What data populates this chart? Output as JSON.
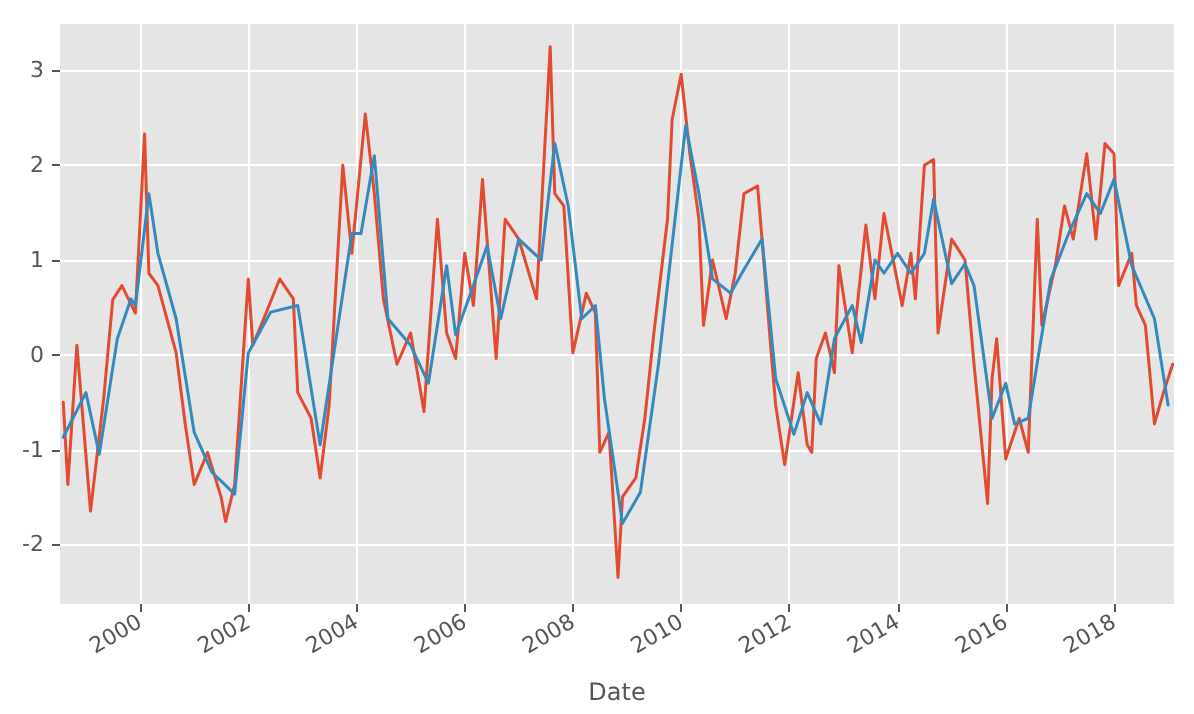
{
  "chart_data": {
    "type": "line",
    "xlabel": "Date",
    "xlim": [
      "1998-07-10",
      "2019-02-10"
    ],
    "xticks": [
      "2000",
      "2002",
      "2004",
      "2006",
      "2008",
      "2010",
      "2012",
      "2014",
      "2016",
      "2018"
    ],
    "ylim": [
      -2.63,
      3.49
    ],
    "yticks": [
      -2,
      -1,
      0,
      1,
      2,
      3
    ],
    "grid": true,
    "marker": "none",
    "line_style": "solid",
    "series": [
      {
        "color": "#e24a33",
        "x": [
          "1998-08",
          "1998-09",
          "1998-11",
          "1999-02",
          "1999-05",
          "1999-07",
          "1999-09",
          "1999-12",
          "2000-02",
          "2000-03",
          "2000-05",
          "2000-09",
          "2000-11",
          "2001-01",
          "2001-04",
          "2001-07",
          "2001-08",
          "2001-10",
          "2002-01",
          "2002-02",
          "2002-05",
          "2002-08",
          "2002-11",
          "2002-12",
          "2003-03",
          "2003-05",
          "2003-07",
          "2003-10",
          "2003-12",
          "2004-03",
          "2004-05",
          "2004-07",
          "2004-10",
          "2005-01",
          "2005-04",
          "2005-07",
          "2005-09",
          "2005-11",
          "2006-01",
          "2006-03",
          "2006-05",
          "2006-08",
          "2006-10",
          "2007-01",
          "2007-05",
          "2007-08",
          "2007-09",
          "2007-11",
          "2008-01",
          "2008-04",
          "2008-06",
          "2008-07",
          "2008-09",
          "2008-11",
          "2008-12",
          "2009-03",
          "2009-05",
          "2009-07",
          "2009-10",
          "2009-11",
          "2010-01",
          "2010-03",
          "2010-05",
          "2010-06",
          "2010-08",
          "2010-11",
          "2011-01",
          "2011-03",
          "2011-06",
          "2011-07",
          "2011-09",
          "2011-10",
          "2011-12",
          "2012-03",
          "2012-05",
          "2012-06",
          "2012-07",
          "2012-09",
          "2012-11",
          "2012-12",
          "2013-03",
          "2013-06",
          "2013-08",
          "2013-10",
          "2014-02",
          "2014-04",
          "2014-05",
          "2014-07",
          "2014-09",
          "2014-10",
          "2015-01",
          "2015-04",
          "2015-06",
          "2015-09",
          "2015-10",
          "2015-11",
          "2016-01",
          "2016-04",
          "2016-06",
          "2016-08",
          "2016-09",
          "2016-12",
          "2017-02",
          "2017-04",
          "2017-07",
          "2017-09",
          "2017-11",
          "2018-01",
          "2018-02",
          "2018-05",
          "2018-06",
          "2018-08",
          "2018-10",
          "2018-12",
          "2019-02"
        ],
        "values": [
          -0.5,
          -1.37,
          0.1,
          -1.65,
          -0.46,
          0.58,
          0.73,
          0.44,
          2.33,
          0.86,
          0.73,
          0.02,
          -0.73,
          -1.37,
          -1.03,
          -1.5,
          -1.76,
          -1.37,
          0.8,
          0.1,
          0.44,
          0.8,
          0.59,
          -0.4,
          -0.67,
          -1.3,
          -0.53,
          2.0,
          1.07,
          2.54,
          1.7,
          0.59,
          -0.1,
          0.23,
          -0.6,
          1.43,
          0.23,
          -0.04,
          1.07,
          0.52,
          1.85,
          -0.04,
          1.43,
          1.22,
          0.59,
          3.25,
          1.7,
          1.57,
          0.02,
          0.65,
          0.44,
          -1.03,
          -0.82,
          -2.35,
          -1.5,
          -1.3,
          -0.67,
          0.23,
          1.43,
          2.48,
          2.96,
          2.12,
          1.43,
          0.31,
          1.0,
          0.38,
          0.86,
          1.7,
          1.78,
          1.22,
          0.02,
          -0.53,
          -1.16,
          -0.19,
          -0.95,
          -1.03,
          -0.04,
          0.23,
          -0.19,
          0.94,
          0.02,
          1.37,
          0.59,
          1.49,
          0.52,
          1.07,
          0.59,
          2.0,
          2.06,
          0.23,
          1.22,
          1.0,
          -0.1,
          -1.57,
          -0.25,
          0.17,
          -1.1,
          -0.67,
          -1.03,
          1.43,
          0.31,
          0.94,
          1.57,
          1.22,
          2.12,
          1.22,
          2.23,
          2.12,
          0.73,
          1.07,
          0.52,
          0.31,
          -0.73,
          -0.4,
          -0.1
        ]
      },
      {
        "color": "#348abd",
        "x": [
          "1998-08",
          "1999-01",
          "1999-04",
          "1999-08",
          "1999-11",
          "1999-12",
          "2000-03",
          "2000-05",
          "2000-09",
          "2001-01",
          "2001-05",
          "2001-10",
          "2002-01",
          "2002-06",
          "2002-12",
          "2003-05",
          "2003-12",
          "2004-02",
          "2004-05",
          "2004-08",
          "2005-01",
          "2005-05",
          "2005-09",
          "2005-11",
          "2006-03",
          "2006-06",
          "2006-09",
          "2007-01",
          "2007-06",
          "2007-09",
          "2007-12",
          "2008-03",
          "2008-06",
          "2008-08",
          "2008-12",
          "2009-04",
          "2009-08",
          "2010-02",
          "2010-05",
          "2010-08",
          "2010-12",
          "2011-03",
          "2011-07",
          "2011-10",
          "2012-02",
          "2012-05",
          "2012-08",
          "2012-11",
          "2013-03",
          "2013-05",
          "2013-08",
          "2013-10",
          "2014-01",
          "2014-04",
          "2014-07",
          "2014-09",
          "2015-01",
          "2015-04",
          "2015-06",
          "2015-10",
          "2016-01",
          "2016-03",
          "2016-06",
          "2016-11",
          "2017-03",
          "2017-07",
          "2017-10",
          "2018-01",
          "2018-05",
          "2018-10",
          "2019-01"
        ],
        "values": [
          -0.87,
          -0.4,
          -1.05,
          0.17,
          0.59,
          0.52,
          1.7,
          1.07,
          0.38,
          -0.82,
          -1.24,
          -1.47,
          0.02,
          0.45,
          0.52,
          -0.95,
          1.28,
          1.28,
          2.1,
          0.38,
          0.1,
          -0.3,
          0.94,
          0.21,
          0.73,
          1.15,
          0.38,
          1.22,
          1.0,
          2.23,
          1.57,
          0.38,
          0.52,
          -0.46,
          -1.78,
          -1.45,
          -0.1,
          2.42,
          1.7,
          0.8,
          0.65,
          0.9,
          1.22,
          -0.25,
          -0.84,
          -0.4,
          -0.73,
          0.17,
          0.52,
          0.13,
          1.0,
          0.86,
          1.07,
          0.86,
          1.07,
          1.64,
          0.75,
          0.96,
          0.73,
          -0.67,
          -0.3,
          -0.73,
          -0.67,
          0.8,
          1.28,
          1.7,
          1.49,
          1.85,
          0.94,
          0.38,
          -0.53
        ]
      }
    ]
  }
}
